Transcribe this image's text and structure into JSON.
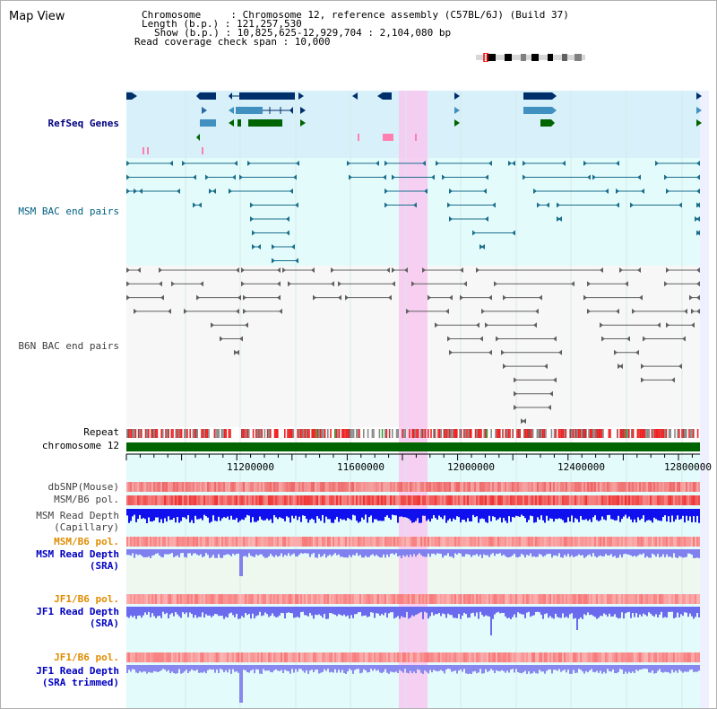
{
  "app": {
    "title": "Map View"
  },
  "info": {
    "chromosome": "Chromosome     : Chromosome 12, reference assembly (C57BL/6J) (Build 37)",
    "length": "Length (b.p.) : 121,257,530",
    "show": "Show (b.p.) : 10,825,625-12,929,704 : 2,104,080 bp",
    "coverage": "Read coverage check span : 10,000"
  },
  "tracks": {
    "refseq": "RefSeq Genes",
    "msm_bac": "MSM BAC end pairs",
    "b6n_bac": "B6N BAC end pairs",
    "repeat": "Repeat",
    "chromosome": "chromosome 12",
    "dbsnp": "dbSNP(Mouse)",
    "msm_pol": "MSM/B6 pol.",
    "msm_depth_cap_1": "MSM Read Depth",
    "msm_depth_cap_2": "(Capillary)",
    "msm_pol2": "MSM/B6 pol.",
    "msm_depth_sra_1": "MSM Read Depth",
    "msm_depth_sra_2": "(SRA)",
    "jf1_pol": "JF1/B6 pol.",
    "jf1_depth_sra_1": "JF1 Read Depth",
    "jf1_depth_sra_2": "(SRA)",
    "jf1_pol2": "JF1/B6 pol.",
    "jf1_depth_trim_1": "JF1 Read Depth",
    "jf1_depth_trim_2": "(SRA trimmed)"
  },
  "axis": {
    "ticks": [
      "11200000",
      "11600000",
      "12000000",
      "12400000",
      "12800000"
    ]
  },
  "colors": {
    "refseq_bg": "#d7f0fa",
    "msm_bg": "#e3fbfb",
    "b6n_bg": "#f7f7f7",
    "highlight": "#f8c8f0",
    "gene_dark": "#00306c",
    "gene_mid": "#4090c0",
    "gene_green": "#006400",
    "msm_line": "#1a6e8c",
    "b6n_line": "#606060",
    "depth_blue": "#0000ee",
    "depth_light": "#8888ff",
    "pol_red": "#ee3333",
    "chrom_green": "#006400"
  }
}
